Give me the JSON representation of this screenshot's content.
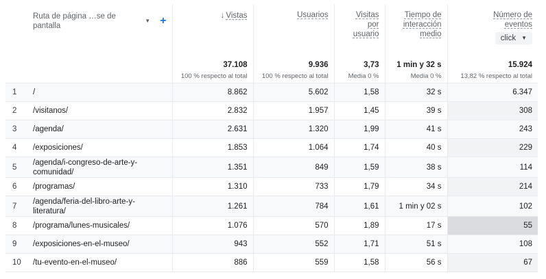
{
  "header": {
    "dimension_label": "Ruta de página …se de pantalla",
    "views_label": "Vistas",
    "users_label": "Usuarios",
    "views_per_user_label": [
      "Visitas",
      "por",
      "usuario"
    ],
    "engagement_label": [
      "Tiempo de",
      "interacción",
      "medio"
    ],
    "events_label": [
      "Número de",
      "eventos"
    ],
    "event_filter_value": "click"
  },
  "totals": {
    "views": "37.108",
    "views_sub": "100 % respecto al total",
    "users": "9.936",
    "users_sub": "100 % respecto al total",
    "views_per_user": "3,73",
    "views_per_user_sub": "Media 0 %",
    "engagement": "1 min y 32 s",
    "engagement_sub": "Media 0 %",
    "events": "15.924",
    "events_sub": "13,82 % respecto al total"
  },
  "rows": [
    {
      "idx": "1",
      "page": "/",
      "views": "8.862",
      "users": "5.602",
      "vpu": "1,58",
      "time": "32 s",
      "events": "6.347"
    },
    {
      "idx": "2",
      "page": "/visitanos/",
      "views": "2.832",
      "users": "1.957",
      "vpu": "1,45",
      "time": "39 s",
      "events": "308"
    },
    {
      "idx": "3",
      "page": "/agenda/",
      "views": "2.631",
      "users": "1.320",
      "vpu": "1,99",
      "time": "41 s",
      "events": "243"
    },
    {
      "idx": "4",
      "page": "/exposiciones/",
      "views": "1.853",
      "users": "1.064",
      "vpu": "1,74",
      "time": "40 s",
      "events": "229"
    },
    {
      "idx": "5",
      "page": "/agenda/i-congreso-de-arte-y-comunidad/",
      "views": "1.351",
      "users": "849",
      "vpu": "1,59",
      "time": "38 s",
      "events": "114"
    },
    {
      "idx": "6",
      "page": "/programas/",
      "views": "1.310",
      "users": "733",
      "vpu": "1,79",
      "time": "34 s",
      "events": "214"
    },
    {
      "idx": "7",
      "page": "/agenda/feria-del-libro-arte-y-literatura/",
      "views": "1.261",
      "users": "784",
      "vpu": "1,61",
      "time": "1 min y 02 s",
      "events": "102"
    },
    {
      "idx": "8",
      "page": "/programa/lunes-musicales/",
      "views": "1.076",
      "users": "570",
      "vpu": "1,89",
      "time": "17 s",
      "events": "55"
    },
    {
      "idx": "9",
      "page": "/exposiciones-en-el-museo/",
      "views": "943",
      "users": "552",
      "vpu": "1,71",
      "time": "51 s",
      "events": "108"
    },
    {
      "idx": "10",
      "page": "/tu-evento-en-el-museo/",
      "views": "886",
      "users": "559",
      "vpu": "1,58",
      "time": "56 s",
      "events": "67"
    }
  ]
}
